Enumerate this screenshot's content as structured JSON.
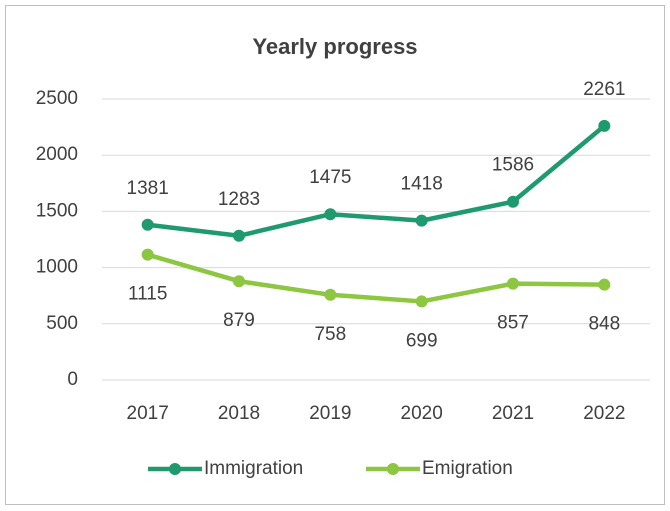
{
  "chart_data": {
    "type": "line",
    "title": "Yearly progress",
    "categories": [
      "2017",
      "2018",
      "2019",
      "2020",
      "2021",
      "2022"
    ],
    "series": [
      {
        "name": "Immigration",
        "color": "#1f9a6f",
        "values": [
          1381,
          1283,
          1475,
          1418,
          1586,
          2261
        ]
      },
      {
        "name": "Emigration",
        "color": "#8dc641",
        "values": [
          1115,
          879,
          758,
          699,
          857,
          848
        ]
      }
    ],
    "ylim": [
      0,
      2500
    ],
    "yticks": [
      0,
      500,
      1000,
      1500,
      2000,
      2500
    ],
    "grid": true,
    "legend": "bottom"
  }
}
